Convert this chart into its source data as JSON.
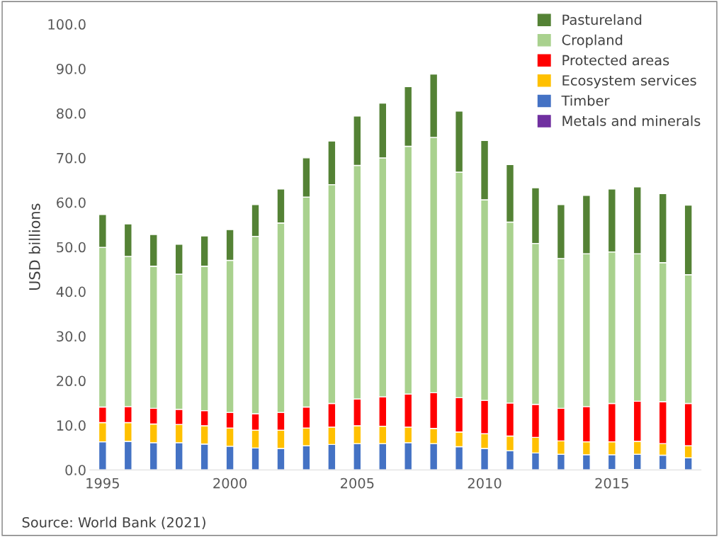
{
  "chart_data": {
    "type": "bar",
    "stacked": true,
    "ylabel": "USD billions",
    "categories": [
      "1995",
      null,
      null,
      null,
      null,
      "2000",
      null,
      null,
      null,
      null,
      "2005",
      null,
      null,
      null,
      null,
      "2010",
      null,
      null,
      null,
      null,
      "2015",
      null,
      null,
      null
    ],
    "series": [
      {
        "name": "Metals and minerals",
        "color": "#7030a0",
        "values": [
          0,
          0,
          0,
          0,
          0,
          0,
          0,
          0,
          0,
          0,
          0,
          0,
          0,
          0,
          0,
          0,
          0,
          0,
          0,
          0,
          0.1,
          0.1,
          0.1,
          0
        ]
      },
      {
        "name": "Timber",
        "color": "#4472c4",
        "values": [
          6.3,
          6.4,
          6.1,
          6.1,
          5.8,
          5.3,
          4.9,
          4.8,
          5.4,
          5.7,
          5.9,
          5.9,
          6.1,
          5.9,
          5.2,
          4.8,
          4.3,
          3.8,
          3.5,
          3.4,
          3.3,
          3.4,
          3.2,
          2.7
        ]
      },
      {
        "name": "Ecosystem services",
        "color": "#ffc000",
        "values": [
          4.3,
          4.2,
          4.2,
          4.1,
          4.1,
          4.1,
          4.0,
          4.1,
          4.0,
          3.9,
          4.0,
          3.9,
          3.5,
          3.4,
          3.3,
          3.3,
          3.3,
          3.5,
          3.0,
          2.9,
          2.9,
          2.9,
          2.6,
          2.7
        ]
      },
      {
        "name": "Protected areas",
        "color": "#ff0000",
        "values": [
          3.5,
          3.6,
          3.5,
          3.4,
          3.4,
          3.5,
          3.7,
          4.0,
          4.7,
          5.3,
          6.0,
          6.6,
          7.4,
          8.0,
          7.7,
          7.5,
          7.4,
          7.4,
          7.3,
          7.9,
          8.6,
          9.0,
          9.4,
          9.5
        ]
      },
      {
        "name": "Cropland",
        "color": "#a9d18e",
        "values": [
          35.8,
          33.7,
          31.9,
          30.3,
          32.4,
          34.1,
          39.8,
          42.5,
          47.1,
          49.1,
          52.4,
          53.6,
          55.6,
          57.3,
          50.6,
          45.0,
          40.6,
          36.1,
          33.6,
          34.3,
          34.0,
          33.1,
          31.2,
          28.9
        ]
      },
      {
        "name": "Pastureland",
        "color": "#548235",
        "values": [
          7.4,
          7.3,
          7.1,
          6.7,
          6.8,
          6.9,
          7.1,
          7.6,
          8.8,
          9.8,
          11.1,
          12.3,
          13.4,
          14.2,
          13.7,
          13.3,
          12.9,
          12.5,
          12.1,
          13.1,
          14.1,
          15.0,
          15.5,
          15.6
        ]
      }
    ],
    "ylim": [
      0,
      100
    ],
    "yticks": [
      {
        "value": 0,
        "label": "0.0"
      },
      {
        "value": 10,
        "label": "10.0"
      },
      {
        "value": 20,
        "label": "20.0"
      },
      {
        "value": 30,
        "label": "30.0"
      },
      {
        "value": 40,
        "label": "40.0"
      },
      {
        "value": 50,
        "label": "50.0"
      },
      {
        "value": 60,
        "label": "60.0"
      },
      {
        "value": 70,
        "label": "70.0"
      },
      {
        "value": 80,
        "label": "80.0"
      },
      {
        "value": 90,
        "label": "90.0"
      },
      {
        "value": 100,
        "label": "100.0"
      }
    ],
    "grid": false,
    "legend": "top right",
    "annotations": [
      "Source: World Bank (2021)"
    ]
  }
}
